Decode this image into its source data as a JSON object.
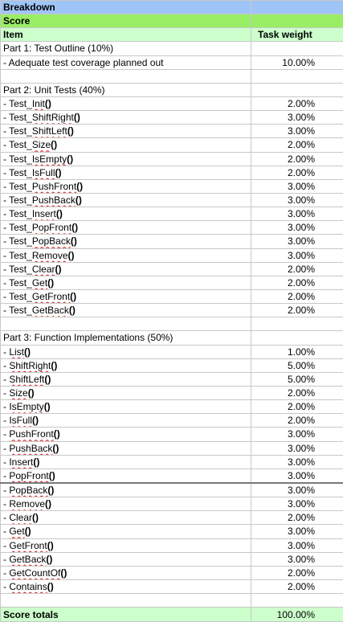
{
  "header": {
    "breakdown": "Breakdown",
    "score": "Score",
    "item_col": "Item",
    "weight_col": "Task weight"
  },
  "part1": {
    "title": "Part 1: Test Outline (10%)",
    "items": [
      {
        "label": "- Adequate test coverage planned out",
        "weight": "10.00%"
      }
    ]
  },
  "part2": {
    "title": "Part 2: Unit Tests (40%)",
    "items": [
      {
        "label": "- Test_Init()",
        "weight": "2.00%"
      },
      {
        "label": "- Test_ShiftRight()",
        "weight": "3.00%"
      },
      {
        "label": "- Test_ShiftLeft()",
        "weight": "3.00%"
      },
      {
        "label": "- Test_Size()",
        "weight": "2.00%"
      },
      {
        "label": "- Test_IsEmpty()",
        "weight": "2.00%"
      },
      {
        "label": "- Test_IsFull()",
        "weight": "2.00%"
      },
      {
        "label": "- Test_PushFront()",
        "weight": "3.00%"
      },
      {
        "label": "- Test_PushBack()",
        "weight": "3.00%"
      },
      {
        "label": "- Test_Insert()",
        "weight": "3.00%"
      },
      {
        "label": "- Test_PopFront()",
        "weight": "3.00%"
      },
      {
        "label": "- Test_PopBack()",
        "weight": "3.00%"
      },
      {
        "label": "- Test_Remove()",
        "weight": "3.00%"
      },
      {
        "label": "- Test_Clear()",
        "weight": "2.00%"
      },
      {
        "label": "- Test_Get()",
        "weight": "2.00%"
      },
      {
        "label": "- Test_GetFront()",
        "weight": "2.00%"
      },
      {
        "label": "- Test_GetBack()",
        "weight": "2.00%"
      }
    ]
  },
  "part3": {
    "title": "Part 3: Function Implementations (50%)",
    "items": [
      {
        "label": "- List()",
        "weight": "1.00%"
      },
      {
        "label": "- ShiftRight()",
        "weight": "5.00%"
      },
      {
        "label": "- ShiftLeft()",
        "weight": "5.00%"
      },
      {
        "label": "- Size()",
        "weight": "2.00%"
      },
      {
        "label": "- IsEmpty()",
        "weight": "2.00%"
      },
      {
        "label": "- IsFull()",
        "weight": "2.00%"
      },
      {
        "label": "- PushFront()",
        "weight": "3.00%"
      },
      {
        "label": "- PushBack()",
        "weight": "3.00%"
      },
      {
        "label": "- Insert()",
        "weight": "3.00%"
      },
      {
        "label": "- PopFront()",
        "weight": "3.00%"
      },
      {
        "label": "- PopBack()",
        "weight": "3.00%"
      },
      {
        "label": "- Remove()",
        "weight": "3.00%"
      },
      {
        "label": "- Clear()",
        "weight": "2.00%"
      },
      {
        "label": "- Get()",
        "weight": "3.00%"
      },
      {
        "label": "- GetFront()",
        "weight": "3.00%"
      },
      {
        "label": "- GetBack()",
        "weight": "3.00%"
      },
      {
        "label": "- GetCountOf()",
        "weight": "2.00%"
      },
      {
        "label": "- Contains()",
        "weight": "2.00%"
      }
    ]
  },
  "totals": {
    "label": "Score totals",
    "value": "100.00%"
  }
}
